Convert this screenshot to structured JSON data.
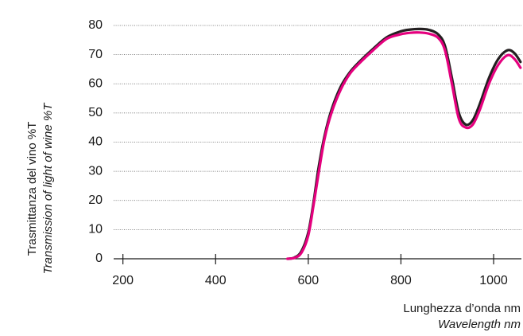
{
  "chart_data": {
    "type": "line",
    "xlabel": "Lunghezza d’onda nm",
    "xlabel_en": "Wavelength nm",
    "ylabel": "Trasmittanza del vino %T",
    "ylabel_en": "Transmission of light of wine %T",
    "xlim": [
      180,
      1060
    ],
    "ylim": [
      0,
      80
    ],
    "x_ticks": [
      200,
      400,
      600,
      800,
      1000
    ],
    "x_tick_labels": [
      "200",
      "400",
      "600",
      "800",
      "1000"
    ],
    "y_ticks": [
      0,
      10,
      20,
      30,
      40,
      50,
      60,
      70,
      80
    ],
    "y_tick_labels": [
      "0",
      "10",
      "20",
      "30",
      "40",
      "50",
      "60",
      "70",
      "80"
    ],
    "grid": true,
    "series": [
      {
        "color": "#231f20",
        "points": [
          [
            557,
            0
          ],
          [
            570,
            0.4
          ],
          [
            585,
            2.5
          ],
          [
            600,
            9
          ],
          [
            612,
            20
          ],
          [
            622,
            31
          ],
          [
            635,
            42
          ],
          [
            650,
            51
          ],
          [
            670,
            59
          ],
          [
            690,
            64
          ],
          [
            710,
            67.5
          ],
          [
            740,
            72
          ],
          [
            770,
            76
          ],
          [
            800,
            78
          ],
          [
            820,
            78.6
          ],
          [
            840,
            78.8
          ],
          [
            860,
            78.5
          ],
          [
            880,
            77
          ],
          [
            895,
            73
          ],
          [
            910,
            62
          ],
          [
            925,
            50
          ],
          [
            940,
            46
          ],
          [
            955,
            47.5
          ],
          [
            970,
            53
          ],
          [
            990,
            62
          ],
          [
            1010,
            68.5
          ],
          [
            1030,
            71.5
          ],
          [
            1045,
            70.5
          ],
          [
            1058,
            67.5
          ]
        ]
      },
      {
        "color": "#e5007e",
        "points": [
          [
            555,
            0
          ],
          [
            570,
            0.3
          ],
          [
            585,
            2
          ],
          [
            600,
            8
          ],
          [
            612,
            19
          ],
          [
            622,
            29
          ],
          [
            635,
            41
          ],
          [
            650,
            50
          ],
          [
            670,
            58
          ],
          [
            690,
            63.5
          ],
          [
            710,
            67
          ],
          [
            740,
            71.5
          ],
          [
            770,
            75.5
          ],
          [
            800,
            77
          ],
          [
            820,
            77.5
          ],
          [
            840,
            77.6
          ],
          [
            860,
            77.2
          ],
          [
            880,
            75.8
          ],
          [
            895,
            71.5
          ],
          [
            910,
            60
          ],
          [
            925,
            48
          ],
          [
            940,
            45
          ],
          [
            955,
            46
          ],
          [
            970,
            51
          ],
          [
            990,
            60
          ],
          [
            1010,
            66.5
          ],
          [
            1030,
            69.8
          ],
          [
            1045,
            68.5
          ],
          [
            1058,
            65.5
          ]
        ]
      }
    ]
  }
}
